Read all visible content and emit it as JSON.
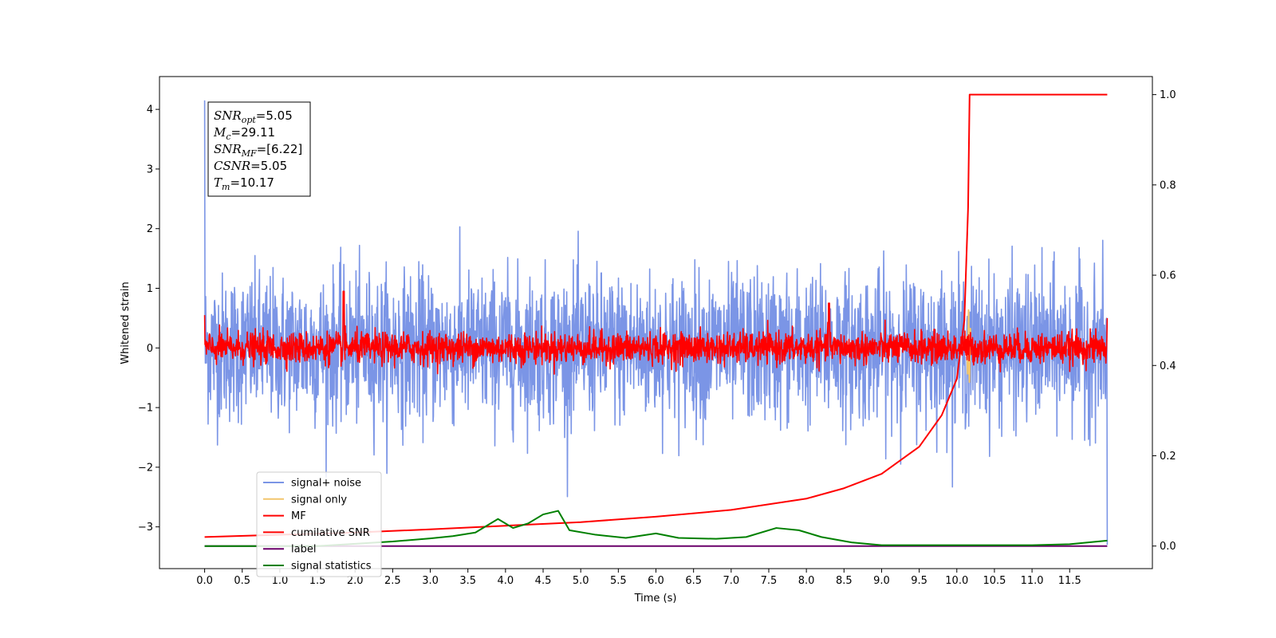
{
  "chart_data": {
    "type": "line",
    "title": "",
    "xlabel": "Time (s)",
    "ylabel": "Whitened strain",
    "xlim": [
      -0.6,
      12.6
    ],
    "ylim": [
      -3.7,
      4.55
    ],
    "y2lim": [
      -0.05,
      1.04
    ],
    "grid": false,
    "legend_position": "lower-left",
    "x_ticks": [
      "0.0",
      "0.5",
      "1.0",
      "1.5",
      "2.0",
      "2.5",
      "3.0",
      "3.5",
      "4.0",
      "4.5",
      "5.0",
      "5.5",
      "6.0",
      "6.5",
      "7.0",
      "7.5",
      "8.0",
      "8.5",
      "9.0",
      "9.5",
      "10.0",
      "10.5",
      "11.0",
      "11.5"
    ],
    "y_ticks": [
      "−3",
      "−2",
      "−1",
      "0",
      "1",
      "2",
      "3",
      "4"
    ],
    "y2_ticks": [
      "0.0",
      "0.2",
      "0.4",
      "0.6",
      "0.8",
      "1.0"
    ],
    "annotation": {
      "lines": [
        {
          "base": "SNR",
          "sub": "opt",
          "value": "=5.05"
        },
        {
          "base": "M",
          "sub": "c",
          "value": "=29.11"
        },
        {
          "base": "SNR",
          "sub": "MF",
          "value": "=[6.22]"
        },
        {
          "base": "CSNR",
          "sub": "",
          "value": "=5.05"
        },
        {
          "base": "T",
          "sub": "m",
          "value": "=10.17"
        }
      ]
    },
    "series": [
      {
        "name": "signal+ noise",
        "color": "#7b95e6",
        "axis": "left",
        "kind": "noise",
        "amplitude_std": 0.62,
        "t_start": 0.0,
        "t_end": 12.0
      },
      {
        "name": "signal only",
        "color": "#f2c66d",
        "axis": "left",
        "kind": "chirp",
        "merger_time": 10.17,
        "peak": 0.65
      },
      {
        "name": "MF",
        "color": "#ff0000",
        "axis": "left",
        "kind": "noise",
        "amplitude_std": 0.13,
        "t_start": 0.0,
        "t_end": 12.0
      },
      {
        "name": "cumilative SNR",
        "color": "#ff0000",
        "axis": "right",
        "x": [
          0.0,
          1.0,
          2.0,
          3.0,
          4.0,
          5.0,
          6.0,
          7.0,
          8.0,
          8.5,
          9.0,
          9.5,
          9.8,
          10.0,
          10.1,
          10.15,
          10.17,
          10.2,
          11.0,
          12.0
        ],
        "y": [
          0.02,
          0.025,
          0.03,
          0.037,
          0.045,
          0.053,
          0.065,
          0.08,
          0.105,
          0.128,
          0.16,
          0.22,
          0.29,
          0.37,
          0.5,
          0.75,
          1.0,
          1.0,
          1.0,
          1.0
        ]
      },
      {
        "name": "label",
        "color": "#6a006a",
        "axis": "right",
        "x": [
          0.0,
          12.0
        ],
        "y": [
          0.0,
          0.0
        ]
      },
      {
        "name": "signal statistics",
        "color": "#008000",
        "axis": "right",
        "x": [
          0.0,
          0.5,
          1.0,
          1.5,
          2.0,
          2.5,
          3.0,
          3.3,
          3.6,
          3.9,
          4.1,
          4.3,
          4.5,
          4.7,
          4.85,
          5.2,
          5.6,
          6.0,
          6.3,
          6.8,
          7.2,
          7.6,
          7.9,
          8.2,
          8.6,
          9.0,
          9.5,
          10.0,
          10.5,
          11.0,
          11.5,
          12.0
        ],
        "y": [
          0.0,
          0.0,
          0.0,
          0.0,
          0.005,
          0.01,
          0.017,
          0.022,
          0.03,
          0.06,
          0.04,
          0.05,
          0.07,
          0.078,
          0.035,
          0.025,
          0.018,
          0.028,
          0.018,
          0.016,
          0.02,
          0.04,
          0.035,
          0.02,
          0.008,
          0.002,
          0.002,
          0.002,
          0.002,
          0.002,
          0.004,
          0.012
        ]
      }
    ]
  }
}
